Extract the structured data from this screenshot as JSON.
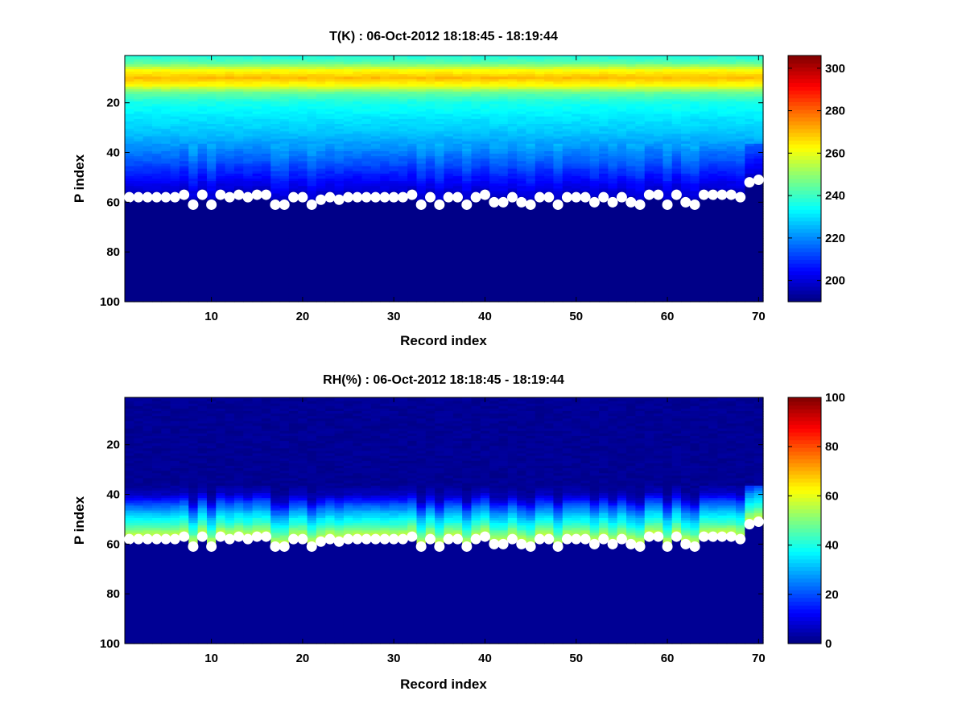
{
  "chart_data": [
    {
      "type": "heatmap",
      "title": "T(K) : 06-Oct-2012 18:18:45 - 18:19:44",
      "xlabel": "Record index",
      "ylabel": "P index",
      "xlim": [
        0.5,
        70.5
      ],
      "ylim": [
        1,
        100
      ],
      "y_reversed": true,
      "xticks": [
        10,
        20,
        30,
        40,
        50,
        60,
        70
      ],
      "yticks": [
        20,
        40,
        60,
        80,
        100
      ],
      "colormap": "jet",
      "clim": [
        190,
        306
      ],
      "colorbar_ticks": [
        200,
        220,
        240,
        260,
        280,
        300
      ],
      "grid": false,
      "field_model": {
        "description": "temperature vs pressure index",
        "profile": [
          [
            1,
            236
          ],
          [
            4,
            244
          ],
          [
            7,
            262
          ],
          [
            10,
            270
          ],
          [
            13,
            262
          ],
          [
            16,
            245
          ],
          [
            20,
            236
          ],
          [
            26,
            231
          ],
          [
            32,
            227
          ],
          [
            38,
            221
          ],
          [
            44,
            214
          ],
          [
            50,
            206
          ],
          [
            55,
            200
          ],
          [
            57,
            195
          ],
          [
            61,
            192
          ],
          [
            100,
            191
          ]
        ],
        "below_surface_value": 191
      },
      "surface_points": {
        "x": [
          1,
          2,
          3,
          4,
          5,
          6,
          7,
          8,
          9,
          10,
          11,
          12,
          13,
          14,
          15,
          16,
          17,
          18,
          19,
          20,
          21,
          22,
          23,
          24,
          25,
          26,
          27,
          28,
          29,
          30,
          31,
          32,
          33,
          34,
          35,
          36,
          37,
          38,
          39,
          40,
          41,
          42,
          43,
          44,
          45,
          46,
          47,
          48,
          49,
          50,
          51,
          52,
          53,
          54,
          55,
          56,
          57,
          58,
          59,
          60,
          61,
          62,
          63,
          64,
          65,
          66,
          67,
          68,
          69,
          70
        ],
        "y": [
          58,
          58,
          58,
          58,
          58,
          58,
          57,
          61,
          57,
          61,
          57,
          58,
          57,
          58,
          57,
          57,
          61,
          61,
          58,
          58,
          61,
          59,
          58,
          59,
          58,
          58,
          58,
          58,
          58,
          58,
          58,
          57,
          61,
          58,
          61,
          58,
          58,
          61,
          58,
          57,
          60,
          60,
          58,
          60,
          61,
          58,
          58,
          61,
          58,
          58,
          58,
          60,
          58,
          60,
          58,
          60,
          61,
          57,
          57,
          61,
          57,
          60,
          61,
          57,
          57,
          57,
          57,
          58,
          52,
          51
        ]
      }
    },
    {
      "type": "heatmap",
      "title": "RH(%) : 06-Oct-2012 18:18:45 - 18:19:44",
      "xlabel": "Record index",
      "ylabel": "P index",
      "xlim": [
        0.5,
        70.5
      ],
      "ylim": [
        1,
        100
      ],
      "y_reversed": true,
      "xticks": [
        10,
        20,
        30,
        40,
        50,
        60,
        70
      ],
      "yticks": [
        20,
        40,
        60,
        80,
        100
      ],
      "colormap": "jet",
      "clim": [
        0,
        100
      ],
      "colorbar_ticks": [
        0,
        20,
        40,
        60,
        80,
        100
      ],
      "grid": false,
      "field_model": {
        "description": "relative humidity vs pressure index",
        "profile": [
          [
            1,
            2
          ],
          [
            36,
            2
          ],
          [
            40,
            6
          ],
          [
            44,
            20
          ],
          [
            48,
            32
          ],
          [
            52,
            42
          ],
          [
            55,
            52
          ],
          [
            57,
            58
          ],
          [
            59,
            3
          ],
          [
            100,
            2
          ]
        ],
        "below_surface_value": 2
      },
      "surface_points": {
        "x": [
          1,
          2,
          3,
          4,
          5,
          6,
          7,
          8,
          9,
          10,
          11,
          12,
          13,
          14,
          15,
          16,
          17,
          18,
          19,
          20,
          21,
          22,
          23,
          24,
          25,
          26,
          27,
          28,
          29,
          30,
          31,
          32,
          33,
          34,
          35,
          36,
          37,
          38,
          39,
          40,
          41,
          42,
          43,
          44,
          45,
          46,
          47,
          48,
          49,
          50,
          51,
          52,
          53,
          54,
          55,
          56,
          57,
          58,
          59,
          60,
          61,
          62,
          63,
          64,
          65,
          66,
          67,
          68,
          69,
          70
        ],
        "y": [
          58,
          58,
          58,
          58,
          58,
          58,
          57,
          61,
          57,
          61,
          57,
          58,
          57,
          58,
          57,
          57,
          61,
          61,
          58,
          58,
          61,
          59,
          58,
          59,
          58,
          58,
          58,
          58,
          58,
          58,
          58,
          57,
          61,
          58,
          61,
          58,
          58,
          61,
          58,
          57,
          60,
          60,
          58,
          60,
          61,
          58,
          58,
          61,
          58,
          58,
          58,
          60,
          58,
          60,
          58,
          60,
          61,
          57,
          57,
          61,
          57,
          60,
          61,
          57,
          57,
          57,
          57,
          58,
          52,
          51
        ]
      }
    }
  ]
}
